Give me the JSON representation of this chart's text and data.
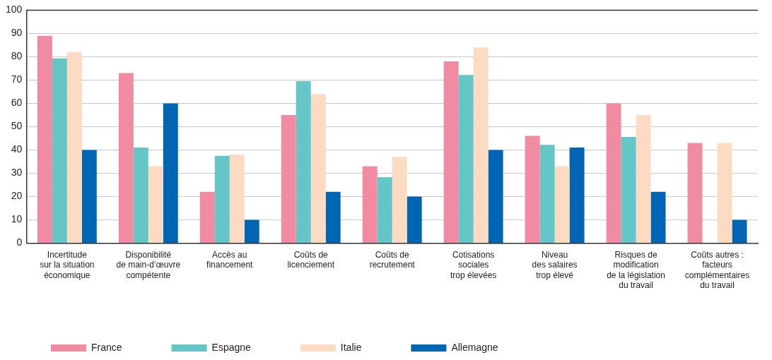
{
  "chart_data": {
    "type": "bar",
    "categories": [
      "Incertitude\nsur la situation\néconomique",
      "Disponibilité\nde main-d’œuvre\ncompétente",
      "Accès au\nfinancement",
      "Coûts de\nlicenciement",
      "Coûts de\nrecrutement",
      "Cotisations\nsociales\ntrop élevées",
      "Niveau\ndes salaires\ntrop élevé",
      "Risques de\nmodification\nde la législation\ndu travail",
      "Coûts autres :\nfacteurs\ncomplémentaires\ndu travail"
    ],
    "series": [
      {
        "name": "France",
        "color": "#f08ba2",
        "values": [
          89,
          73,
          22,
          55,
          33,
          78,
          46,
          60,
          43
        ]
      },
      {
        "name": "Espagne",
        "color": "#64c6c6",
        "values": [
          79.3,
          41,
          37.5,
          69.5,
          28.3,
          72.2,
          42.2,
          45.6,
          null
        ]
      },
      {
        "name": "Italie",
        "color": "#fddbc3",
        "values": [
          82,
          33,
          38,
          64,
          37,
          84,
          33,
          55,
          43
        ]
      },
      {
        "name": "Allemagne",
        "color": "#0066b3",
        "values": [
          40,
          60,
          10,
          22,
          20,
          40,
          41,
          22,
          10
        ]
      }
    ],
    "ylim": [
      0,
      100
    ],
    "yticks": [
      0,
      10,
      20,
      30,
      40,
      50,
      60,
      70,
      80,
      90,
      100
    ],
    "grid": "y",
    "legend": "bottom left"
  }
}
